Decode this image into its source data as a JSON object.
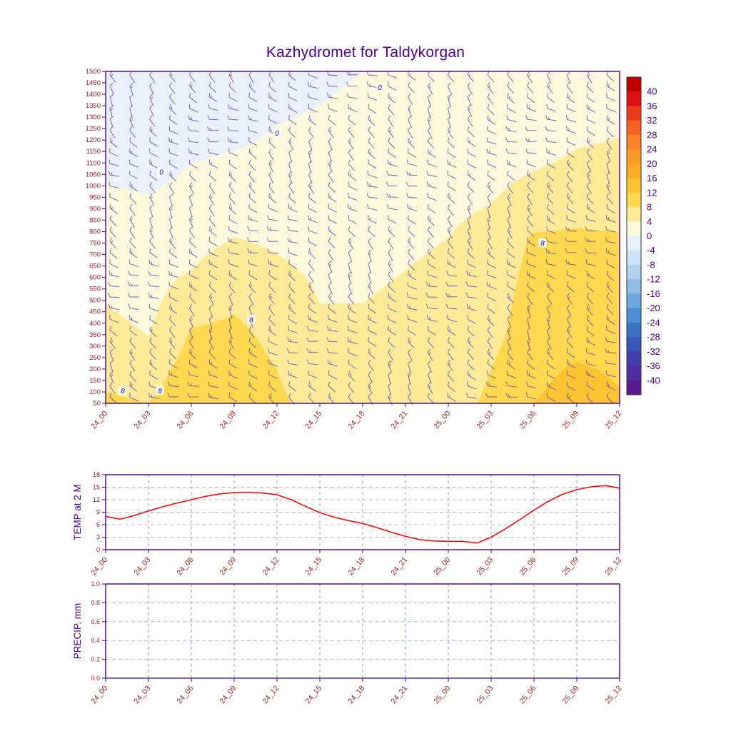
{
  "title": "Kazhydromet for Taldykorgan",
  "colors": {
    "frame": "#4b0082",
    "title": "#4b0082",
    "tick_label": "#9b2222",
    "axis_title": "#4b0082",
    "temp_line": "#e81010",
    "precip_line": "#6a3fa5",
    "wind_barb": "#6a3fa5",
    "grid_h": "#98a6c6",
    "grid_v": "#6f7fd8",
    "colorbar_label": "#4b0082",
    "contour_label": "#00008b"
  },
  "x_labels": [
    "24_00",
    "24_03",
    "24_06",
    "24_09",
    "24_12",
    "24_15",
    "24_18",
    "24_21",
    "25_00",
    "25_03",
    "25_06",
    "25_09",
    "25_12"
  ],
  "chart_data": [
    {
      "name": "upper-air-temperature-meteogram",
      "type": "heatmap",
      "title": "Kazhydromet for Taldykorgan",
      "x_tick_labels": [
        "24_00",
        "24_03",
        "24_06",
        "24_09",
        "24_12",
        "24_15",
        "24_18",
        "24_21",
        "25_00",
        "25_03",
        "25_06",
        "25_09",
        "25_12"
      ],
      "x_hour_offsets": [
        0,
        3,
        6,
        9,
        12,
        15,
        18,
        21,
        24,
        27,
        30,
        33,
        36
      ],
      "y_tick_labels": [
        1500,
        1450,
        1400,
        1350,
        1300,
        1250,
        1200,
        1150,
        1100,
        1050,
        1000,
        950,
        900,
        850,
        800,
        750,
        700,
        650,
        600,
        550,
        500,
        450,
        400,
        350,
        300,
        250,
        200,
        150,
        100,
        50
      ],
      "y_levels_grid": [
        1500,
        1350,
        1200,
        1050,
        900,
        750,
        600,
        450,
        300,
        150,
        50
      ],
      "values": [
        [
          -2.5,
          -2.5,
          -2,
          -1.5,
          -1,
          -0.5,
          0,
          0.5,
          1,
          1.5,
          2,
          2.5,
          3
        ],
        [
          -2,
          -2.5,
          -1.5,
          -1,
          -0.5,
          0,
          0.5,
          1,
          1.5,
          2,
          2.5,
          3,
          3.5
        ],
        [
          -1.5,
          -2,
          -1,
          -0.5,
          0.3,
          0.8,
          1.2,
          1.8,
          2.2,
          2.8,
          3.2,
          3.8,
          4
        ],
        [
          -0.5,
          -1,
          0.3,
          0.8,
          1.2,
          1.6,
          2,
          2.4,
          2.8,
          3.4,
          4,
          4.4,
          4.6
        ],
        [
          0.8,
          0.4,
          1.4,
          1.8,
          2.2,
          2.4,
          2.8,
          3,
          3.4,
          4,
          5,
          5.4,
          5.2
        ],
        [
          2,
          1.5,
          3,
          4,
          3.5,
          3,
          3.5,
          3.5,
          4,
          5,
          8.5,
          9,
          8.5
        ],
        [
          3,
          2.5,
          4,
          5.5,
          4.5,
          3.5,
          3.5,
          4,
          4.5,
          6,
          9,
          9.5,
          9
        ],
        [
          4,
          3,
          6.5,
          7.5,
          6,
          4,
          4,
          4.5,
          5,
          6.5,
          9.5,
          10,
          9.5
        ],
        [
          5,
          4,
          8.5,
          9,
          7,
          5,
          4.5,
          5,
          5.5,
          7,
          10,
          10.5,
          10
        ],
        [
          7,
          6.5,
          9.5,
          10,
          8,
          6,
          5,
          5.5,
          6,
          8,
          11,
          12.5,
          11.5
        ],
        [
          8.5,
          8,
          10,
          10.5,
          8.5,
          7,
          6,
          6.5,
          7,
          8.5,
          12,
          13.5,
          12.5
        ]
      ],
      "colorbar_ticks": [
        40,
        36,
        32,
        28,
        24,
        20,
        16,
        12,
        8,
        4,
        0,
        -4,
        -8,
        -12,
        -16,
        -20,
        -24,
        -28,
        -32,
        -36,
        -40
      ],
      "colorbar_band_colors": [
        "#c00000",
        "#dd1111",
        "#ee3b1f",
        "#f56127",
        "#f9822b",
        "#fa9a28",
        "#fbab24",
        "#fcc332",
        "#fdd94f",
        "#feeb9a",
        "#fdf9dc",
        "#e8f1fa",
        "#cfe3f6",
        "#b1d2ef",
        "#8fbde6",
        "#6ba6dc",
        "#4b8dd0",
        "#3a72c4",
        "#3857b8",
        "#423eac",
        "#512d9e",
        "#5a1a90"
      ],
      "contour_labeled_values": [
        0,
        8
      ],
      "contour_labels": [
        {
          "text": "0",
          "hour": 3.9,
          "level": 1060
        },
        {
          "text": "0",
          "hour": 12.0,
          "level": 1230
        },
        {
          "text": "0",
          "hour": 19.2,
          "level": 1430
        },
        {
          "text": "8",
          "hour": 10.2,
          "level": 415
        },
        {
          "text": "8",
          "hour": 30.6,
          "level": 750
        },
        {
          "text": "8",
          "hour": 1.2,
          "level": 105
        },
        {
          "text": "8",
          "hour": 3.8,
          "level": 105
        }
      ],
      "wind_barbs": {
        "rows": 30,
        "cols": 26
      }
    },
    {
      "name": "temp-2m",
      "type": "line",
      "ylabel": "TEMP at 2 M",
      "ylim": [
        0,
        18
      ],
      "yticks": [
        0,
        3,
        6,
        9,
        12,
        15,
        18
      ],
      "x_hours_step": 1,
      "values": [
        8.0,
        7.3,
        8.2,
        9.3,
        10.3,
        11.2,
        12.0,
        12.8,
        13.4,
        13.7,
        13.8,
        13.6,
        13.2,
        12.0,
        10.4,
        8.9,
        7.8,
        7.0,
        6.3,
        5.3,
        4.2,
        3.2,
        2.4,
        2.1,
        2.0,
        2.0,
        1.6,
        3.0,
        5.0,
        7.2,
        9.5,
        11.6,
        13.3,
        14.4,
        15.1,
        15.4,
        14.8
      ]
    },
    {
      "name": "precip",
      "type": "line",
      "ylabel": "PRECIP, mm",
      "ylim": [
        0,
        1
      ],
      "yticks": [
        0,
        0.2,
        0.4,
        0.6,
        0.8,
        1
      ],
      "values": [
        0,
        0,
        0,
        0,
        0,
        0,
        0,
        0,
        0,
        0,
        0,
        0,
        0
      ]
    }
  ]
}
